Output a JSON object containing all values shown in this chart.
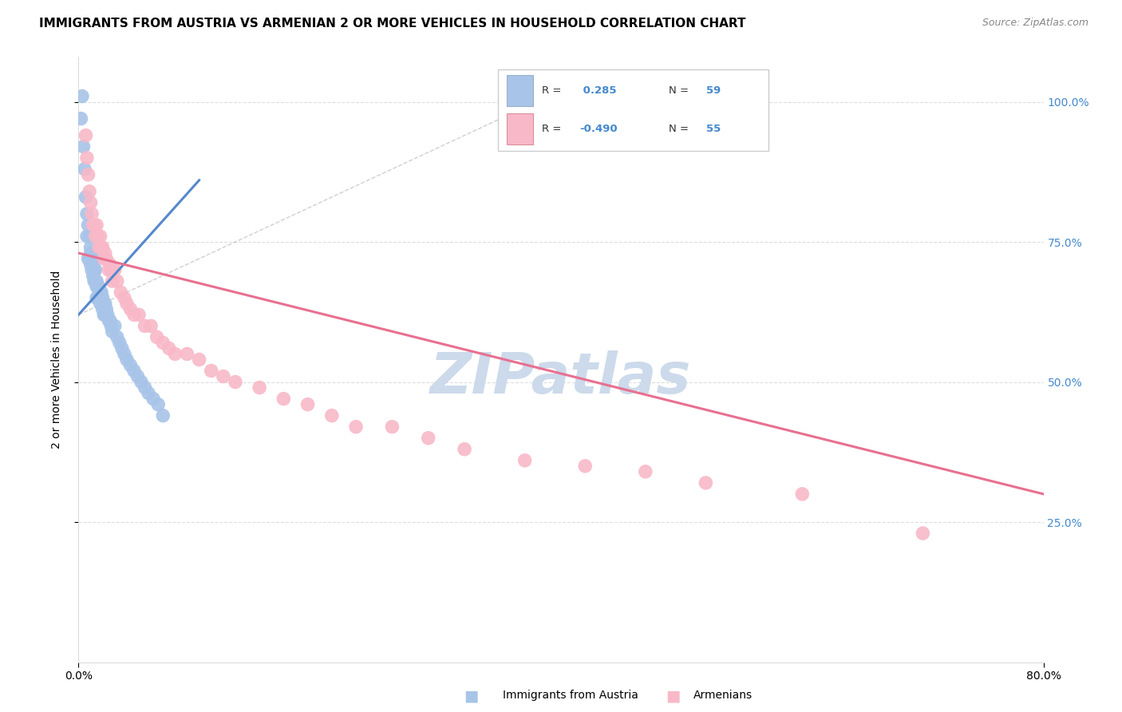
{
  "title": "IMMIGRANTS FROM AUSTRIA VS ARMENIAN 2 OR MORE VEHICLES IN HOUSEHOLD CORRELATION CHART",
  "source": "Source: ZipAtlas.com",
  "ylabel": "2 or more Vehicles in Household",
  "x_min": 0.0,
  "x_max": 0.8,
  "y_min": 0.0,
  "y_max": 1.08,
  "x_ticks": [
    0.0,
    0.8
  ],
  "x_tick_labels": [
    "0.0%",
    "80.0%"
  ],
  "y_ticks_right": [
    0.25,
    0.5,
    0.75,
    1.0
  ],
  "y_tick_labels_right": [
    "25.0%",
    "50.0%",
    "75.0%",
    "100.0%"
  ],
  "legend_labels": [
    "Immigrants from Austria",
    "Armenians"
  ],
  "r_austria": "0.285",
  "n_austria": "59",
  "r_armenian": "-0.490",
  "n_armenian": "55",
  "color_austria": "#a8c4e8",
  "color_armenian": "#f8b8c8",
  "color_austria_dark": "#5588cc",
  "color_armenian_dark": "#e87090",
  "color_ref_line": "#bbbbbb",
  "background_color": "#ffffff",
  "grid_color": "#dddddd",
  "watermark_text": "ZIPatlas",
  "watermark_color": "#ccdaeb",
  "watermark_fontsize": 52,
  "title_fontsize": 11,
  "source_fontsize": 9,
  "axis_label_fontsize": 10,
  "tick_fontsize": 10,
  "austria_x": [
    0.002,
    0.004,
    0.005,
    0.006,
    0.007,
    0.007,
    0.008,
    0.008,
    0.009,
    0.009,
    0.01,
    0.01,
    0.01,
    0.011,
    0.011,
    0.012,
    0.012,
    0.013,
    0.013,
    0.013,
    0.014,
    0.014,
    0.015,
    0.015,
    0.015,
    0.016,
    0.016,
    0.017,
    0.018,
    0.018,
    0.019,
    0.02,
    0.02,
    0.021,
    0.021,
    0.022,
    0.022,
    0.023,
    0.024,
    0.025,
    0.026,
    0.027,
    0.028,
    0.03,
    0.032,
    0.034,
    0.036,
    0.038,
    0.04,
    0.043,
    0.046,
    0.049,
    0.052,
    0.055,
    0.058,
    0.062,
    0.066,
    0.003,
    0.07
  ],
  "austria_y": [
    0.97,
    0.92,
    0.88,
    0.83,
    0.8,
    0.76,
    0.78,
    0.72,
    0.76,
    0.72,
    0.74,
    0.73,
    0.71,
    0.72,
    0.7,
    0.71,
    0.69,
    0.72,
    0.7,
    0.68,
    0.7,
    0.68,
    0.68,
    0.67,
    0.65,
    0.67,
    0.65,
    0.67,
    0.66,
    0.64,
    0.66,
    0.65,
    0.63,
    0.64,
    0.62,
    0.64,
    0.62,
    0.63,
    0.62,
    0.61,
    0.61,
    0.6,
    0.59,
    0.6,
    0.58,
    0.57,
    0.56,
    0.55,
    0.54,
    0.53,
    0.52,
    0.51,
    0.5,
    0.49,
    0.48,
    0.47,
    0.46,
    1.01,
    0.44
  ],
  "armenian_x": [
    0.006,
    0.007,
    0.008,
    0.009,
    0.01,
    0.011,
    0.012,
    0.013,
    0.014,
    0.015,
    0.016,
    0.017,
    0.018,
    0.019,
    0.02,
    0.021,
    0.022,
    0.023,
    0.025,
    0.026,
    0.027,
    0.028,
    0.03,
    0.032,
    0.035,
    0.038,
    0.04,
    0.043,
    0.046,
    0.05,
    0.055,
    0.06,
    0.065,
    0.07,
    0.075,
    0.08,
    0.09,
    0.1,
    0.11,
    0.12,
    0.13,
    0.15,
    0.17,
    0.19,
    0.21,
    0.23,
    0.26,
    0.29,
    0.32,
    0.37,
    0.42,
    0.47,
    0.52,
    0.6,
    0.7
  ],
  "armenian_y": [
    0.94,
    0.9,
    0.87,
    0.84,
    0.82,
    0.8,
    0.78,
    0.78,
    0.76,
    0.78,
    0.76,
    0.74,
    0.76,
    0.74,
    0.74,
    0.72,
    0.73,
    0.72,
    0.7,
    0.71,
    0.7,
    0.68,
    0.7,
    0.68,
    0.66,
    0.65,
    0.64,
    0.63,
    0.62,
    0.62,
    0.6,
    0.6,
    0.58,
    0.57,
    0.56,
    0.55,
    0.55,
    0.54,
    0.52,
    0.51,
    0.5,
    0.49,
    0.47,
    0.46,
    0.44,
    0.42,
    0.42,
    0.4,
    0.38,
    0.36,
    0.35,
    0.34,
    0.32,
    0.3,
    0.23
  ],
  "austria_trend_x": [
    0.0,
    0.1
  ],
  "austria_trend_y": [
    0.62,
    0.86
  ],
  "armenian_trend_x": [
    0.0,
    0.8
  ],
  "armenian_trend_y": [
    0.73,
    0.3
  ],
  "ref_line_x": [
    0.0,
    0.42
  ],
  "ref_line_y": [
    0.62,
    1.04
  ]
}
